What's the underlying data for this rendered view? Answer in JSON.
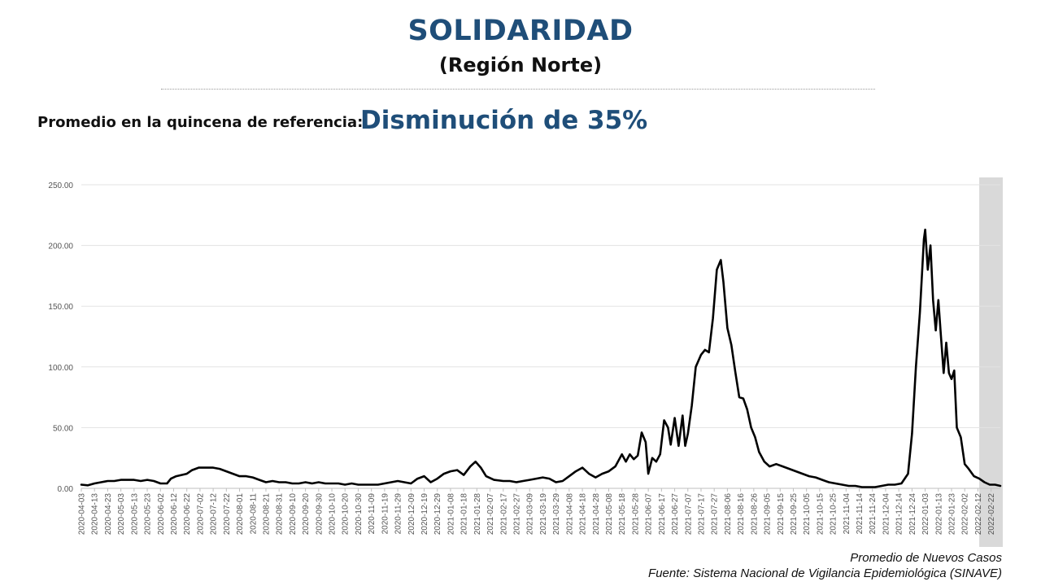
{
  "header": {
    "title": "SOLIDARIDAD",
    "subtitle": "(Región Norte)",
    "reference_label": "Promedio en la quincena de referencia:",
    "reference_value": "Disminución de 35%"
  },
  "footer": {
    "series_name": "Promedio de Nuevos Casos",
    "source": "Fuente: Sistema Nacional de Vigilancia Epidemiológica (SINAVE)"
  },
  "chart_data": {
    "type": "line",
    "title": "",
    "xlabel": "",
    "ylabel": "",
    "ylim": [
      0,
      250
    ],
    "yticks": [
      "0.00",
      "50.00",
      "100.00",
      "150.00",
      "200.00",
      "250.00"
    ],
    "grid": "horizontal",
    "line_color": "#000000",
    "shaded_region_color": "#d9d9d9",
    "shaded_region": [
      "2022-02-13",
      "2022-03-01"
    ],
    "x_start": "2020-04-03",
    "x_end": "2022-03-01",
    "xticks": [
      "2020-04-03",
      "2020-04-13",
      "2020-04-23",
      "2020-05-03",
      "2020-05-13",
      "2020-05-23",
      "2020-06-02",
      "2020-06-12",
      "2020-06-22",
      "2020-07-02",
      "2020-07-12",
      "2020-07-22",
      "2020-08-01",
      "2020-08-11",
      "2020-08-21",
      "2020-08-31",
      "2020-09-10",
      "2020-09-20",
      "2020-09-30",
      "2020-10-10",
      "2020-10-20",
      "2020-10-30",
      "2020-11-09",
      "2020-11-19",
      "2020-11-29",
      "2020-12-09",
      "2020-12-19",
      "2020-12-29",
      "2021-01-08",
      "2021-01-18",
      "2021-01-28",
      "2021-02-07",
      "2021-02-17",
      "2021-02-27",
      "2021-03-09",
      "2021-03-19",
      "2021-03-29",
      "2021-04-08",
      "2021-04-18",
      "2021-04-28",
      "2021-05-08",
      "2021-05-18",
      "2021-05-28",
      "2021-06-07",
      "2021-06-17",
      "2021-06-27",
      "2021-07-07",
      "2021-07-17",
      "2021-07-27",
      "2021-08-06",
      "2021-08-16",
      "2021-08-26",
      "2021-09-05",
      "2021-09-15",
      "2021-09-25",
      "2021-10-05",
      "2021-10-15",
      "2021-10-25",
      "2021-11-04",
      "2021-11-14",
      "2021-11-24",
      "2021-12-04",
      "2021-12-14",
      "2021-12-24",
      "2022-01-03",
      "2022-01-13",
      "2022-01-23",
      "2022-02-02",
      "2022-02-12",
      "2022-02-22"
    ],
    "series": [
      {
        "name": "Promedio de Nuevos Casos",
        "points": [
          [
            "2020-04-03",
            3
          ],
          [
            "2020-04-08",
            2.5
          ],
          [
            "2020-04-13",
            4
          ],
          [
            "2020-04-18",
            5
          ],
          [
            "2020-04-23",
            6
          ],
          [
            "2020-04-28",
            6
          ],
          [
            "2020-05-03",
            7
          ],
          [
            "2020-05-08",
            7
          ],
          [
            "2020-05-13",
            7
          ],
          [
            "2020-05-18",
            6
          ],
          [
            "2020-05-23",
            7
          ],
          [
            "2020-05-28",
            6
          ],
          [
            "2020-06-02",
            4
          ],
          [
            "2020-06-07",
            4
          ],
          [
            "2020-06-10",
            8
          ],
          [
            "2020-06-14",
            10
          ],
          [
            "2020-06-18",
            11
          ],
          [
            "2020-06-22",
            12
          ],
          [
            "2020-06-26",
            15
          ],
          [
            "2020-07-01",
            17
          ],
          [
            "2020-07-06",
            17
          ],
          [
            "2020-07-12",
            17
          ],
          [
            "2020-07-17",
            16
          ],
          [
            "2020-07-22",
            14
          ],
          [
            "2020-07-27",
            12
          ],
          [
            "2020-08-01",
            10
          ],
          [
            "2020-08-06",
            10
          ],
          [
            "2020-08-11",
            9
          ],
          [
            "2020-08-16",
            7
          ],
          [
            "2020-08-21",
            5
          ],
          [
            "2020-08-26",
            6
          ],
          [
            "2020-08-31",
            5
          ],
          [
            "2020-09-05",
            5
          ],
          [
            "2020-09-10",
            4
          ],
          [
            "2020-09-15",
            4
          ],
          [
            "2020-09-20",
            5
          ],
          [
            "2020-09-25",
            4
          ],
          [
            "2020-09-30",
            5
          ],
          [
            "2020-10-05",
            4
          ],
          [
            "2020-10-10",
            4
          ],
          [
            "2020-10-15",
            4
          ],
          [
            "2020-10-20",
            3
          ],
          [
            "2020-10-25",
            4
          ],
          [
            "2020-10-30",
            3
          ],
          [
            "2020-11-04",
            3
          ],
          [
            "2020-11-09",
            3
          ],
          [
            "2020-11-14",
            3
          ],
          [
            "2020-11-19",
            4
          ],
          [
            "2020-11-24",
            5
          ],
          [
            "2020-11-29",
            6
          ],
          [
            "2020-12-04",
            5
          ],
          [
            "2020-12-09",
            4
          ],
          [
            "2020-12-14",
            8
          ],
          [
            "2020-12-19",
            10
          ],
          [
            "2020-12-24",
            5
          ],
          [
            "2020-12-29",
            8
          ],
          [
            "2021-01-03",
            12
          ],
          [
            "2021-01-08",
            14
          ],
          [
            "2021-01-13",
            15
          ],
          [
            "2021-01-18",
            11
          ],
          [
            "2021-01-23",
            18
          ],
          [
            "2021-01-27",
            22
          ],
          [
            "2021-01-31",
            17
          ],
          [
            "2021-02-04",
            10
          ],
          [
            "2021-02-10",
            7
          ],
          [
            "2021-02-17",
            6
          ],
          [
            "2021-02-22",
            6
          ],
          [
            "2021-02-27",
            5
          ],
          [
            "2021-03-04",
            6
          ],
          [
            "2021-03-09",
            7
          ],
          [
            "2021-03-14",
            8
          ],
          [
            "2021-03-19",
            9
          ],
          [
            "2021-03-24",
            8
          ],
          [
            "2021-03-29",
            5
          ],
          [
            "2021-04-03",
            6
          ],
          [
            "2021-04-08",
            10
          ],
          [
            "2021-04-13",
            14
          ],
          [
            "2021-04-18",
            17
          ],
          [
            "2021-04-23",
            12
          ],
          [
            "2021-04-28",
            9
          ],
          [
            "2021-05-03",
            12
          ],
          [
            "2021-05-08",
            14
          ],
          [
            "2021-05-13",
            18
          ],
          [
            "2021-05-18",
            28
          ],
          [
            "2021-05-21",
            22
          ],
          [
            "2021-05-24",
            28
          ],
          [
            "2021-05-27",
            24
          ],
          [
            "2021-05-30",
            27
          ],
          [
            "2021-06-02",
            46
          ],
          [
            "2021-06-05",
            38
          ],
          [
            "2021-06-07",
            12
          ],
          [
            "2021-06-10",
            25
          ],
          [
            "2021-06-13",
            22
          ],
          [
            "2021-06-16",
            28
          ],
          [
            "2021-06-19",
            56
          ],
          [
            "2021-06-22",
            50
          ],
          [
            "2021-06-24",
            36
          ],
          [
            "2021-06-27",
            58
          ],
          [
            "2021-06-30",
            35
          ],
          [
            "2021-07-03",
            60
          ],
          [
            "2021-07-05",
            35
          ],
          [
            "2021-07-07",
            45
          ],
          [
            "2021-07-10",
            68
          ],
          [
            "2021-07-13",
            100
          ],
          [
            "2021-07-17",
            110
          ],
          [
            "2021-07-20",
            114
          ],
          [
            "2021-07-23",
            112
          ],
          [
            "2021-07-26",
            140
          ],
          [
            "2021-07-29",
            180
          ],
          [
            "2021-08-01",
            188
          ],
          [
            "2021-08-03",
            170
          ],
          [
            "2021-08-06",
            132
          ],
          [
            "2021-08-09",
            118
          ],
          [
            "2021-08-12",
            96
          ],
          [
            "2021-08-15",
            75
          ],
          [
            "2021-08-18",
            74
          ],
          [
            "2021-08-21",
            65
          ],
          [
            "2021-08-24",
            50
          ],
          [
            "2021-08-27",
            42
          ],
          [
            "2021-08-30",
            30
          ],
          [
            "2021-09-03",
            22
          ],
          [
            "2021-09-07",
            18
          ],
          [
            "2021-09-12",
            20
          ],
          [
            "2021-09-17",
            18
          ],
          [
            "2021-09-22",
            16
          ],
          [
            "2021-09-27",
            14
          ],
          [
            "2021-10-02",
            12
          ],
          [
            "2021-10-07",
            10
          ],
          [
            "2021-10-12",
            9
          ],
          [
            "2021-10-17",
            7
          ],
          [
            "2021-10-22",
            5
          ],
          [
            "2021-10-27",
            4
          ],
          [
            "2021-11-01",
            3
          ],
          [
            "2021-11-06",
            2
          ],
          [
            "2021-11-11",
            2
          ],
          [
            "2021-11-16",
            1
          ],
          [
            "2021-11-21",
            1
          ],
          [
            "2021-11-26",
            1
          ],
          [
            "2021-12-01",
            2
          ],
          [
            "2021-12-06",
            3
          ],
          [
            "2021-12-11",
            3
          ],
          [
            "2021-12-16",
            4
          ],
          [
            "2021-12-21",
            12
          ],
          [
            "2021-12-24",
            45
          ],
          [
            "2021-12-27",
            100
          ],
          [
            "2021-12-30",
            145
          ],
          [
            "2022-01-02",
            205
          ],
          [
            "2022-01-03",
            213
          ],
          [
            "2022-01-05",
            180
          ],
          [
            "2022-01-07",
            200
          ],
          [
            "2022-01-09",
            155
          ],
          [
            "2022-01-11",
            130
          ],
          [
            "2022-01-13",
            155
          ],
          [
            "2022-01-15",
            125
          ],
          [
            "2022-01-17",
            95
          ],
          [
            "2022-01-19",
            120
          ],
          [
            "2022-01-21",
            95
          ],
          [
            "2022-01-23",
            90
          ],
          [
            "2022-01-25",
            97
          ],
          [
            "2022-01-27",
            50
          ],
          [
            "2022-01-30",
            42
          ],
          [
            "2022-02-02",
            20
          ],
          [
            "2022-02-05",
            16
          ],
          [
            "2022-02-09",
            10
          ],
          [
            "2022-02-13",
            8
          ],
          [
            "2022-02-17",
            5
          ],
          [
            "2022-02-21",
            3
          ],
          [
            "2022-02-25",
            3
          ],
          [
            "2022-03-01",
            2
          ]
        ]
      }
    ]
  }
}
